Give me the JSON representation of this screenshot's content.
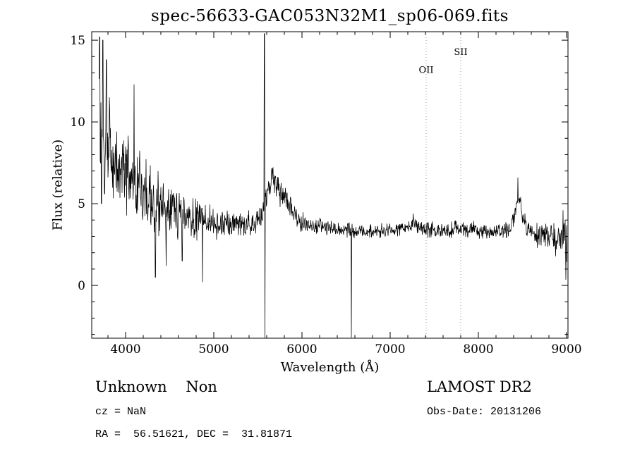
{
  "chart_data": {
    "type": "line",
    "title": "spec-56633-GAC053N32M1_sp06-069.fits",
    "xlabel": "Wavelength (Å)",
    "ylabel": "Flux (relative)",
    "xlim": [
      3616,
      9016
    ],
    "ylim": [
      -3.23,
      15.52
    ],
    "x_ticks": [
      4000,
      5000,
      6000,
      7000,
      8000,
      9000
    ],
    "x_minor_step": 200,
    "y_ticks": [
      0,
      5,
      10,
      15
    ],
    "y_minor_step": 1,
    "grid": false,
    "line_color": "#000000",
    "marker_line_color": "#999999",
    "sample_step": 4,
    "x_range": [
      3700,
      9005
    ],
    "noise_seed": 20131206,
    "continuum": [
      [
        3700,
        9.8
      ],
      [
        3750,
        9.2
      ],
      [
        3800,
        8.6
      ],
      [
        3900,
        7.6
      ],
      [
        4000,
        6.9
      ],
      [
        4100,
        6.3
      ],
      [
        4200,
        5.7
      ],
      [
        4300,
        5.2
      ],
      [
        4400,
        4.8
      ],
      [
        4500,
        4.5
      ],
      [
        4600,
        4.3
      ],
      [
        4700,
        4.15
      ],
      [
        4800,
        4.05
      ],
      [
        4900,
        3.95
      ],
      [
        5000,
        3.85
      ],
      [
        5100,
        3.8
      ],
      [
        5200,
        3.75
      ],
      [
        5300,
        3.75
      ],
      [
        5400,
        3.8
      ],
      [
        5500,
        3.95
      ],
      [
        5550,
        4.3
      ],
      [
        5600,
        5.5
      ],
      [
        5650,
        6.4
      ],
      [
        5700,
        6.2
      ],
      [
        5800,
        5.2
      ],
      [
        5900,
        4.4
      ],
      [
        6000,
        3.85
      ],
      [
        6100,
        3.65
      ],
      [
        6200,
        3.55
      ],
      [
        6300,
        3.5
      ],
      [
        6400,
        3.45
      ],
      [
        6500,
        3.4
      ],
      [
        6600,
        3.35
      ],
      [
        6700,
        3.3
      ],
      [
        6800,
        3.3
      ],
      [
        6900,
        3.35
      ],
      [
        7000,
        3.4
      ],
      [
        7100,
        3.45
      ],
      [
        7200,
        3.55
      ],
      [
        7280,
        3.8
      ],
      [
        7350,
        3.55
      ],
      [
        7450,
        3.4
      ],
      [
        7550,
        3.35
      ],
      [
        7650,
        3.35
      ],
      [
        7750,
        3.4
      ],
      [
        7850,
        3.4
      ],
      [
        7950,
        3.35
      ],
      [
        8050,
        3.3
      ],
      [
        8150,
        3.25
      ],
      [
        8250,
        3.25
      ],
      [
        8350,
        3.35
      ],
      [
        8420,
        4.6
      ],
      [
        8460,
        5.3
      ],
      [
        8500,
        4.3
      ],
      [
        8560,
        3.4
      ],
      [
        8650,
        3.1
      ],
      [
        8750,
        2.95
      ],
      [
        8850,
        2.75
      ],
      [
        8920,
        3.1
      ],
      [
        8960,
        3.3
      ],
      [
        9005,
        2.3
      ]
    ],
    "noise_envelope": [
      [
        3700,
        2.6
      ],
      [
        3800,
        2.4
      ],
      [
        3900,
        2.1
      ],
      [
        4000,
        1.9
      ],
      [
        4100,
        1.8
      ],
      [
        4200,
        1.7
      ],
      [
        4300,
        1.6
      ],
      [
        4400,
        1.5
      ],
      [
        4500,
        1.25
      ],
      [
        4700,
        1.0
      ],
      [
        4900,
        0.85
      ],
      [
        5100,
        0.7
      ],
      [
        5300,
        0.6
      ],
      [
        5500,
        0.6
      ],
      [
        5650,
        0.75
      ],
      [
        5800,
        0.7
      ],
      [
        6000,
        0.5
      ],
      [
        6300,
        0.4
      ],
      [
        6600,
        0.35
      ],
      [
        7000,
        0.33
      ],
      [
        7300,
        0.38
      ],
      [
        7500,
        0.42
      ],
      [
        7700,
        0.4
      ],
      [
        7900,
        0.42
      ],
      [
        8100,
        0.35
      ],
      [
        8300,
        0.4
      ],
      [
        8500,
        0.45
      ],
      [
        8700,
        0.6
      ],
      [
        8850,
        0.8
      ],
      [
        9005,
        0.95
      ]
    ],
    "spikes": [
      {
        "x": 3706,
        "y": 15.2
      },
      {
        "x": 3726,
        "y": 5.0
      },
      {
        "x": 3742,
        "y": 15.0
      },
      {
        "x": 3762,
        "y": 5.6
      },
      {
        "x": 3782,
        "y": 13.8
      },
      {
        "x": 4096,
        "y": 12.3
      },
      {
        "x": 4338,
        "y": 0.5
      },
      {
        "x": 4460,
        "y": 1.2
      },
      {
        "x": 4642,
        "y": 1.5
      },
      {
        "x": 4872,
        "y": 0.2
      },
      {
        "x": 5574,
        "y": 15.4
      },
      {
        "x": 5580,
        "y": -3.2
      },
      {
        "x": 6560,
        "y": -3.2
      },
      {
        "x": 7260,
        "y": 4.4
      },
      {
        "x": 8448,
        "y": 6.6
      },
      {
        "x": 8960,
        "y": 4.6
      },
      {
        "x": 8992,
        "y": 0.35
      }
    ],
    "marked_lines": [
      {
        "label": "OII",
        "x": 7408,
        "label_flux": 13.0
      },
      {
        "label": "SII",
        "x": 7800,
        "label_flux": 14.1
      }
    ]
  },
  "footer": {
    "class_label": "Unknown    Non",
    "survey": "LAMOST DR2",
    "cz": "cz = NaN",
    "obs_date": "Obs-Date: 20131206",
    "coords": "RA =  56.51621, DEC =  31.81871"
  }
}
